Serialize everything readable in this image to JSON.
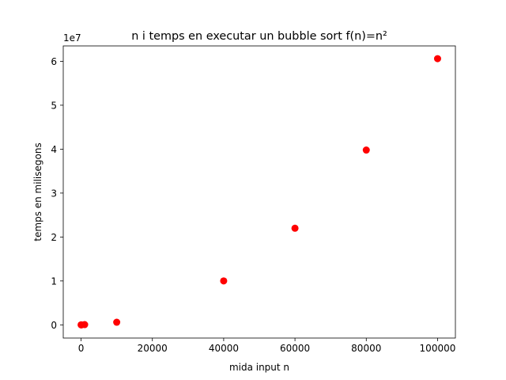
{
  "chart_data": {
    "type": "scatter",
    "title": "n i temps en executar un bubble sort f(n)=n²",
    "xlabel": "mida input n",
    "ylabel": "temps en milisegons",
    "y_offset_text": "1e7",
    "xlim": [
      -5000,
      105000
    ],
    "ylim": [
      -3000000,
      63500000
    ],
    "x_ticks": [
      0,
      20000,
      40000,
      60000,
      80000,
      100000
    ],
    "x_tick_labels": [
      "0",
      "20000",
      "40000",
      "60000",
      "80000",
      "100000"
    ],
    "y_ticks": [
      0,
      10000000,
      20000000,
      30000000,
      40000000,
      50000000,
      60000000
    ],
    "y_tick_labels": [
      "0",
      "1",
      "2",
      "3",
      "4",
      "5",
      "6"
    ],
    "grid": false,
    "marker_color": "#ff0000",
    "points": [
      {
        "x": 10,
        "y": 0
      },
      {
        "x": 100,
        "y": 0
      },
      {
        "x": 1000,
        "y": 60000
      },
      {
        "x": 10000,
        "y": 600000
      },
      {
        "x": 40000,
        "y": 10000000
      },
      {
        "x": 60000,
        "y": 22000000
      },
      {
        "x": 80000,
        "y": 39800000
      },
      {
        "x": 100000,
        "y": 60600000
      }
    ]
  }
}
